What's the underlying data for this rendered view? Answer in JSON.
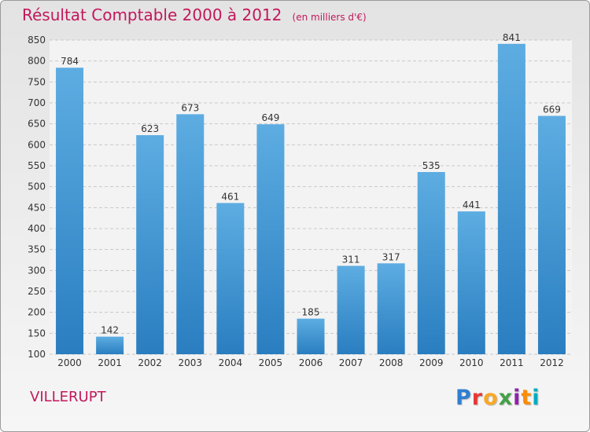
{
  "header": {
    "title": "Résultat Comptable 2000 à 2012",
    "subtitle": "(en milliers d'€)"
  },
  "footer": {
    "place": "VILLERUPT",
    "logo_text": "Proxiti",
    "logo_colors": [
      "#2e7fd0",
      "#e53935",
      "#f9a825",
      "#43a047",
      "#8e24aa",
      "#fb8c00",
      "#00acc1"
    ]
  },
  "colors": {
    "title": "#c2185b",
    "bar_top": "#5dade2",
    "bar_bottom": "#2a7ec0",
    "grid": "#c8c8c8",
    "axis_text": "#333333"
  },
  "chart_data": {
    "type": "bar",
    "categories": [
      "2000",
      "2001",
      "2002",
      "2003",
      "2004",
      "2005",
      "2006",
      "2007",
      "2008",
      "2009",
      "2010",
      "2011",
      "2012"
    ],
    "values": [
      784,
      142,
      623,
      673,
      461,
      649,
      185,
      311,
      317,
      535,
      441,
      841,
      669
    ],
    "ylim": [
      100,
      850
    ],
    "yticks": [
      100,
      150,
      200,
      250,
      300,
      350,
      400,
      450,
      500,
      550,
      600,
      650,
      700,
      750,
      800,
      850
    ],
    "grid": true,
    "legend": "none"
  }
}
